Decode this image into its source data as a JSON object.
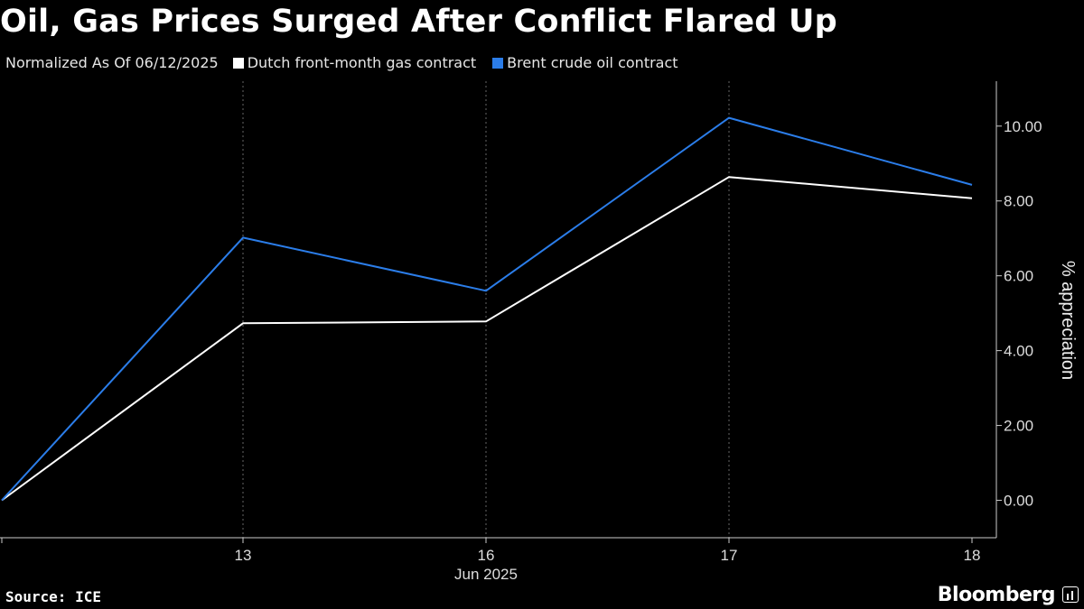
{
  "title": "Oil, Gas Prices Surged After Conflict Flared Up",
  "legend": {
    "note": "Normalized As Of 06/12/2025",
    "items": [
      {
        "label": "Dutch front-month gas contract",
        "color": "#ffffff"
      },
      {
        "label": "Brent crude oil contract",
        "color": "#2b7de9"
      }
    ]
  },
  "source": "Source: ICE",
  "brand": "Bloomberg",
  "chart_data": {
    "type": "line",
    "x": [
      "Jun 12",
      "Jun 13",
      "Jun 16",
      "Jun 17",
      "Jun 18"
    ],
    "x_tick_labels": [
      "",
      "13",
      "16",
      "17",
      "18"
    ],
    "x_axis_caption": "Jun 2025",
    "series": [
      {
        "name": "Dutch front-month gas contract",
        "color": "#ffffff",
        "values": [
          0.0,
          4.73,
          4.78,
          8.64,
          8.07
        ]
      },
      {
        "name": "Brent crude oil contract",
        "color": "#2b7de9",
        "values": [
          0.0,
          7.02,
          5.6,
          10.22,
          8.43
        ]
      }
    ],
    "ylabel": "% appreciation",
    "y_ticks": [
      "0.00",
      "2.00",
      "4.00",
      "6.00",
      "8.00",
      "10.00"
    ],
    "y_tick_values": [
      0,
      2,
      4,
      6,
      8,
      10
    ],
    "ylim": [
      -1.0,
      11.2
    ],
    "y_axis_position": "right",
    "grid": "vertical dashed at x ticks"
  }
}
